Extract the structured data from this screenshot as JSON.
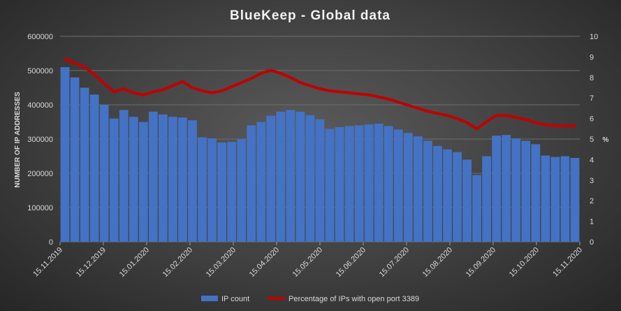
{
  "chart_data": {
    "type": "bar+line",
    "title": "BlueKeep - Global data",
    "ylabel_left": "NUMBER OF IP ADDRESSES",
    "ylabel_right": "%",
    "ylim_left": [
      0,
      600000
    ],
    "ylim_right": [
      0,
      10
    ],
    "y_ticks_left": [
      "0",
      "100000",
      "200000",
      "300000",
      "400000",
      "500000",
      "600000"
    ],
    "y_ticks_right": [
      "0",
      "1",
      "2",
      "3",
      "4",
      "5",
      "6",
      "7",
      "8",
      "9",
      "10"
    ],
    "x_ticks": [
      "15.11.2019",
      "15.12.2019",
      "15.01.2020",
      "15.02.2020",
      "15.03.2020",
      "15.04.2020",
      "15.05.2020",
      "15.06.2020",
      "15.07.2020",
      "15.08.2020",
      "15.09.2020",
      "15.10.2020",
      "15.11.2020"
    ],
    "grid": true,
    "legend_position": "bottom",
    "colors": {
      "bar": "#4472c4",
      "bar_highlight": "#5b8ff0",
      "line": "#c00000"
    },
    "series": [
      {
        "name": "IP count",
        "type": "bar",
        "x": [
          "15.11.2019",
          "22.11.2019",
          "29.11.2019",
          "06.12.2019",
          "13.12.2019",
          "20.12.2019",
          "27.12.2019",
          "03.01.2020",
          "10.01.2020",
          "17.01.2020",
          "24.01.2020",
          "31.01.2020",
          "07.02.2020",
          "14.02.2020",
          "21.02.2020",
          "28.02.2020",
          "06.03.2020",
          "13.03.2020",
          "20.03.2020",
          "27.03.2020",
          "03.04.2020",
          "10.04.2020",
          "17.04.2020",
          "24.04.2020",
          "01.05.2020",
          "08.05.2020",
          "15.05.2020",
          "22.05.2020",
          "29.05.2020",
          "05.06.2020",
          "12.06.2020",
          "19.06.2020",
          "26.06.2020",
          "03.07.2020",
          "10.07.2020",
          "17.07.2020",
          "24.07.2020",
          "31.07.2020",
          "07.08.2020",
          "14.08.2020",
          "21.08.2020",
          "28.08.2020",
          "04.09.2020",
          "11.09.2020",
          "18.09.2020",
          "25.09.2020",
          "02.10.2020",
          "09.10.2020",
          "16.10.2020",
          "23.10.2020",
          "30.10.2020",
          "06.11.2020",
          "15.11.2020"
        ],
        "values": [
          510000,
          480000,
          450000,
          430000,
          400000,
          360000,
          385000,
          365000,
          350000,
          380000,
          372000,
          365000,
          363000,
          355000,
          305000,
          302000,
          290000,
          292000,
          300000,
          340000,
          350000,
          368000,
          380000,
          385000,
          380000,
          370000,
          358000,
          330000,
          335000,
          338000,
          340000,
          343000,
          345000,
          338000,
          328000,
          318000,
          308000,
          295000,
          280000,
          270000,
          262000,
          240000,
          195000,
          250000,
          310000,
          312000,
          302000,
          295000,
          285000,
          252000,
          248000,
          250000,
          245000
        ]
      },
      {
        "name": "Percentage of IPs with open port 3389",
        "type": "line",
        "axis": "right",
        "x": [
          "15.11.2019",
          "22.11.2019",
          "29.11.2019",
          "06.12.2019",
          "13.12.2019",
          "20.12.2019",
          "27.12.2019",
          "03.01.2020",
          "10.01.2020",
          "17.01.2020",
          "24.01.2020",
          "31.01.2020",
          "07.02.2020",
          "14.02.2020",
          "21.02.2020",
          "28.02.2020",
          "06.03.2020",
          "13.03.2020",
          "20.03.2020",
          "27.03.2020",
          "03.04.2020",
          "10.04.2020",
          "17.04.2020",
          "24.04.2020",
          "01.05.2020",
          "08.05.2020",
          "15.05.2020",
          "22.05.2020",
          "29.05.2020",
          "05.06.2020",
          "12.06.2020",
          "19.06.2020",
          "26.06.2020",
          "03.07.2020",
          "10.07.2020",
          "17.07.2020",
          "24.07.2020",
          "31.07.2020",
          "07.08.2020",
          "14.08.2020",
          "21.08.2020",
          "28.08.2020",
          "04.09.2020",
          "11.09.2020",
          "18.09.2020",
          "25.09.2020",
          "02.10.2020",
          "09.10.2020",
          "16.10.2020",
          "23.10.2020",
          "30.10.2020",
          "06.11.2020",
          "15.11.2020"
        ],
        "values": [
          8.9,
          8.7,
          8.5,
          8.15,
          7.7,
          7.3,
          7.45,
          7.25,
          7.15,
          7.3,
          7.4,
          7.6,
          7.8,
          7.5,
          7.35,
          7.25,
          7.35,
          7.55,
          7.75,
          7.95,
          8.2,
          8.35,
          8.2,
          8.0,
          7.75,
          7.6,
          7.45,
          7.35,
          7.3,
          7.25,
          7.2,
          7.15,
          7.05,
          6.95,
          6.8,
          6.65,
          6.5,
          6.35,
          6.25,
          6.15,
          6.0,
          5.8,
          5.5,
          5.85,
          6.15,
          6.15,
          6.05,
          5.95,
          5.8,
          5.7,
          5.65,
          5.65,
          5.65
        ]
      }
    ]
  }
}
